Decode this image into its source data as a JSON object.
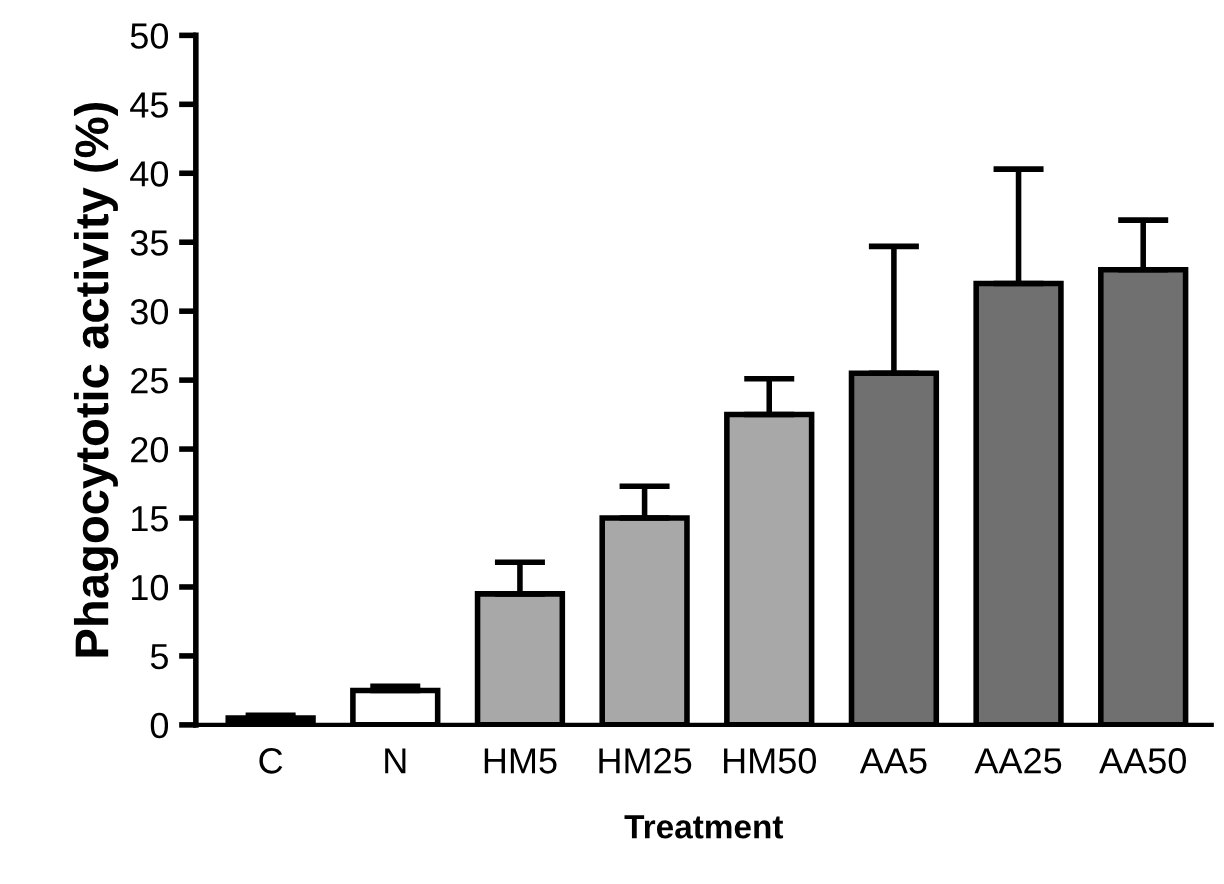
{
  "chart_data": {
    "type": "bar",
    "xlabel": "Treatment",
    "ylabel": "Phagocytotic activity (%)",
    "categories": [
      "C",
      "N",
      "HM5",
      "HM25",
      "HM50",
      "AA5",
      "AA25",
      "AA50"
    ],
    "values": [
      0.5,
      2.5,
      9.5,
      15,
      22.5,
      25.5,
      32,
      33
    ],
    "errors": [
      [
        0.5,
        0.7
      ],
      [
        2.5,
        2.8
      ],
      [
        9.5,
        11.8
      ],
      [
        15,
        17.3
      ],
      [
        22.5,
        25.1
      ],
      [
        25.5,
        34.7
      ],
      [
        32,
        40.3
      ],
      [
        33,
        36.6
      ]
    ],
    "colors": [
      "#000000",
      "#ffffff",
      "#a8a8a8",
      "#a8a8a8",
      "#a8a8a8",
      "#707070",
      "#707070",
      "#707070"
    ],
    "ylim": [
      0,
      50
    ],
    "yticks": [
      0,
      5,
      10,
      15,
      20,
      25,
      30,
      35,
      40,
      45,
      50
    ],
    "grid": false
  }
}
